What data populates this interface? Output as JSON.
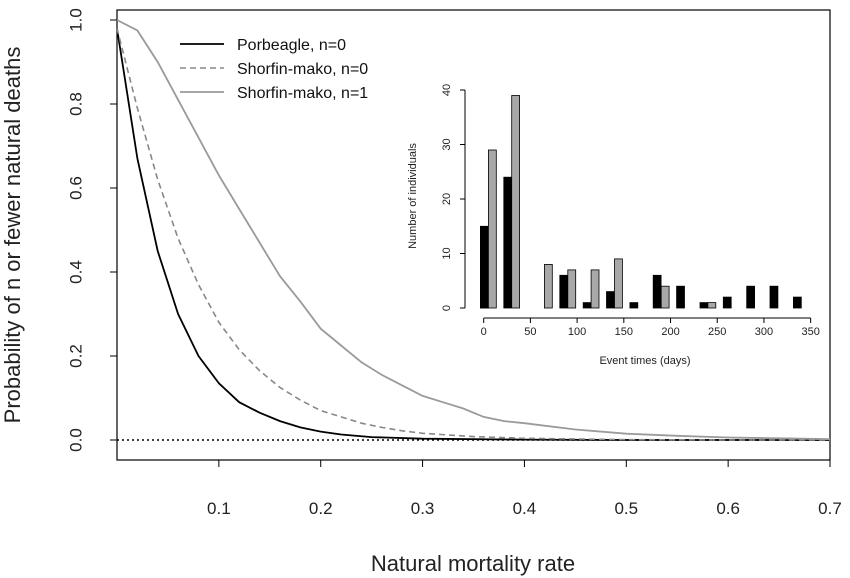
{
  "chart_data": [
    {
      "type": "line",
      "xlabel": "Natural mortality rate",
      "ylabel": "Probability of n or fewer natural deaths",
      "xlim": [
        0,
        0.7
      ],
      "ylim": [
        0,
        1.0
      ],
      "x_ticks": [
        "0.1",
        "0.2",
        "0.3",
        "0.4",
        "0.5",
        "0.6",
        "0.7"
      ],
      "y_ticks": [
        "0.0",
        "0.2",
        "0.4",
        "0.6",
        "0.8",
        "1.0"
      ],
      "reference_line": {
        "y": 0,
        "style": "dotted"
      },
      "legend_position": "top-left",
      "series": [
        {
          "name": "Porbeagle, n=0",
          "style": "solid",
          "color": "#000000",
          "x": [
            0,
            0.02,
            0.04,
            0.06,
            0.08,
            0.1,
            0.12,
            0.14,
            0.16,
            0.18,
            0.2,
            0.22,
            0.25,
            0.3,
            0.4,
            0.5,
            0.6,
            0.7
          ],
          "y": [
            0.98,
            0.67,
            0.45,
            0.3,
            0.2,
            0.135,
            0.09,
            0.065,
            0.045,
            0.03,
            0.02,
            0.013,
            0.007,
            0.003,
            0.001,
            0.0,
            0.0,
            0.0
          ]
        },
        {
          "name": "Shorfin-mako, n=0",
          "style": "dashed",
          "color": "#888888",
          "x": [
            0,
            0.02,
            0.04,
            0.06,
            0.08,
            0.1,
            0.12,
            0.14,
            0.16,
            0.18,
            0.2,
            0.22,
            0.24,
            0.26,
            0.28,
            0.3,
            0.35,
            0.4,
            0.5,
            0.6,
            0.7
          ],
          "y": [
            0.98,
            0.79,
            0.62,
            0.48,
            0.37,
            0.28,
            0.215,
            0.165,
            0.125,
            0.095,
            0.07,
            0.055,
            0.04,
            0.03,
            0.022,
            0.016,
            0.008,
            0.004,
            0.001,
            0.0,
            0.0
          ]
        },
        {
          "name": "Shorfin-mako, n=1",
          "style": "solid",
          "color": "#9a9a9a",
          "x": [
            0,
            0.02,
            0.04,
            0.06,
            0.08,
            0.1,
            0.12,
            0.14,
            0.16,
            0.18,
            0.2,
            0.22,
            0.24,
            0.26,
            0.28,
            0.3,
            0.32,
            0.34,
            0.36,
            0.38,
            0.4,
            0.45,
            0.5,
            0.55,
            0.6,
            0.65,
            0.7
          ],
          "y": [
            1.0,
            0.975,
            0.9,
            0.81,
            0.72,
            0.63,
            0.55,
            0.47,
            0.39,
            0.33,
            0.265,
            0.225,
            0.185,
            0.155,
            0.13,
            0.105,
            0.09,
            0.075,
            0.055,
            0.045,
            0.04,
            0.025,
            0.015,
            0.01,
            0.006,
            0.004,
            0.002
          ]
        }
      ]
    },
    {
      "type": "bar",
      "xlabel": "Event times (days)",
      "ylabel": "Number of individuals",
      "xlim": [
        -20,
        360
      ],
      "ylim": [
        0,
        40
      ],
      "x_ticks": [
        "0",
        "50",
        "100",
        "150",
        "200",
        "250",
        "300",
        "350"
      ],
      "y_ticks": [
        "0",
        "10",
        "20",
        "30",
        "40"
      ],
      "bin_centers": [
        5,
        30,
        65,
        90,
        115,
        140,
        165,
        190,
        215,
        240,
        265,
        290,
        315,
        340
      ],
      "series": [
        {
          "color": "#000000",
          "values": [
            15,
            24,
            0,
            6,
            1,
            3,
            1,
            6,
            4,
            1,
            2,
            4,
            4,
            2
          ]
        },
        {
          "color": "#a8a8a8",
          "values": [
            29,
            39,
            8,
            7,
            7,
            9,
            0,
            4,
            0,
            1,
            0,
            0,
            0,
            0
          ]
        }
      ]
    }
  ]
}
